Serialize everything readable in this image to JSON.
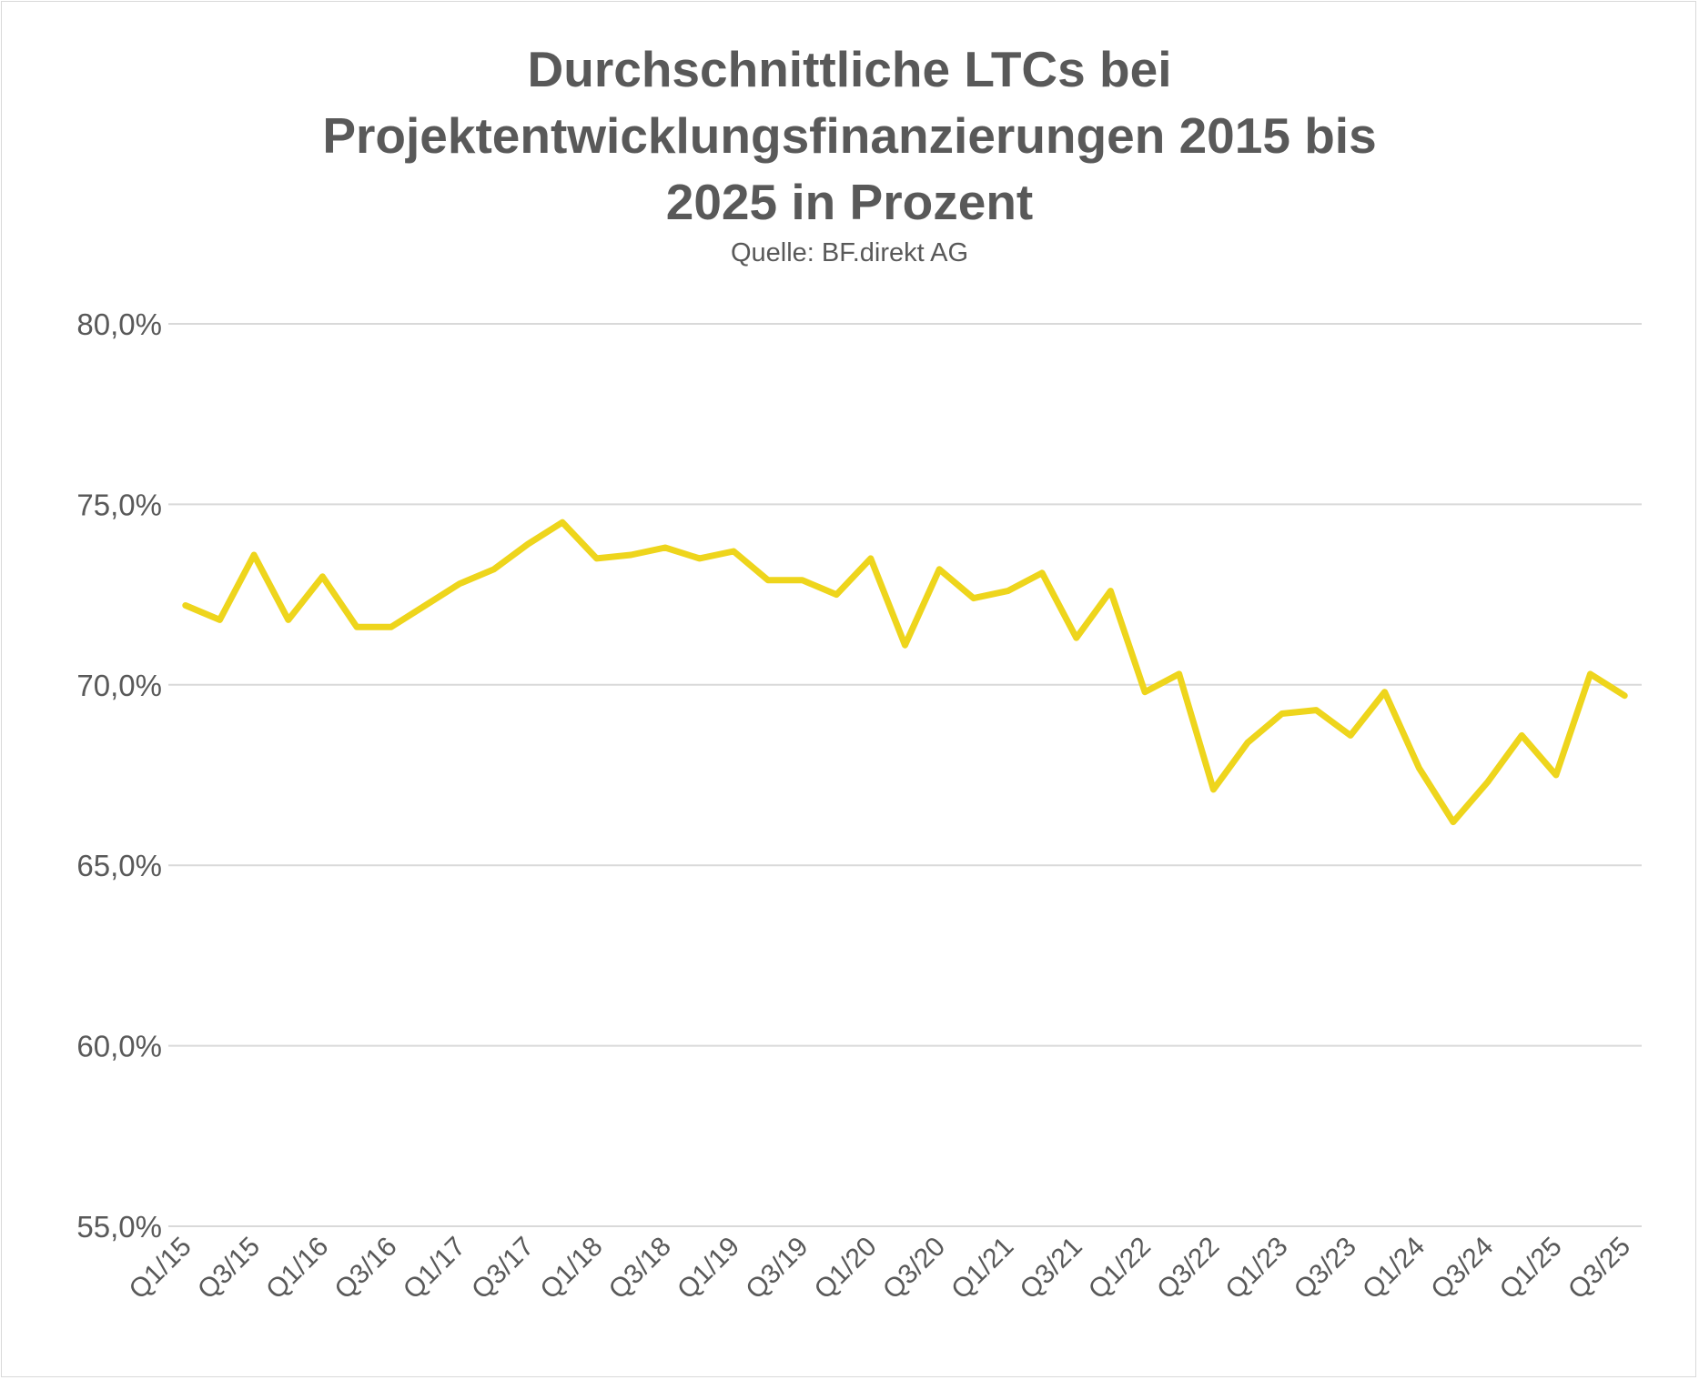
{
  "chart_data": {
    "type": "line",
    "title": "Durchschnittliche LTCs bei Projektentwicklungsfinanzierungen 2015 bis 2025 in Prozent",
    "title_lines": [
      "Durchschnittliche LTCs bei",
      "Projektentwicklungsfinanzierungen 2015 bis",
      "2025 in Prozent"
    ],
    "subtitle": "Quelle: BF.direkt AG",
    "xlabel": "",
    "ylabel": "",
    "ylim": [
      55,
      80
    ],
    "yticks": [
      55,
      60,
      65,
      70,
      75,
      80
    ],
    "ytick_labels": [
      "55,0%",
      "60,0%",
      "65,0%",
      "70,0%",
      "75,0%",
      "80,0%"
    ],
    "grid": "horizontal",
    "legend": "none",
    "line_color": "#EED51C",
    "categories": [
      "Q1/15",
      "Q2/15",
      "Q3/15",
      "Q4/15",
      "Q1/16",
      "Q2/16",
      "Q3/16",
      "Q4/16",
      "Q1/17",
      "Q2/17",
      "Q3/17",
      "Q4/17",
      "Q1/18",
      "Q2/18",
      "Q3/18",
      "Q4/18",
      "Q1/19",
      "Q2/19",
      "Q3/19",
      "Q4/19",
      "Q1/20",
      "Q2/20",
      "Q3/20",
      "Q4/20",
      "Q1/21",
      "Q2/21",
      "Q3/21",
      "Q4/21",
      "Q1/22",
      "Q2/22",
      "Q3/22",
      "Q4/22",
      "Q1/23",
      "Q2/23",
      "Q3/23",
      "Q4/23",
      "Q1/24",
      "Q2/24",
      "Q3/24",
      "Q4/24",
      "Q1/25",
      "Q2/25",
      "Q3/25"
    ],
    "x_tick_labels": [
      "Q1/15",
      "Q3/15",
      "Q1/16",
      "Q3/16",
      "Q1/17",
      "Q3/17",
      "Q1/18",
      "Q3/18",
      "Q1/19",
      "Q3/19",
      "Q1/20",
      "Q3/20",
      "Q1/21",
      "Q3/21",
      "Q1/22",
      "Q3/22",
      "Q1/23",
      "Q3/23",
      "Q1/24",
      "Q3/24",
      "Q1/25",
      "Q3/25"
    ],
    "values": [
      72.2,
      71.8,
      73.6,
      71.8,
      73.0,
      71.6,
      71.6,
      72.2,
      72.8,
      73.2,
      73.9,
      74.5,
      73.5,
      73.6,
      73.8,
      73.5,
      73.7,
      72.9,
      72.9,
      72.5,
      73.5,
      71.1,
      73.2,
      72.4,
      72.6,
      73.1,
      71.3,
      72.6,
      69.8,
      70.3,
      67.1,
      68.4,
      69.2,
      69.3,
      68.6,
      69.8,
      67.7,
      66.2,
      67.3,
      68.6,
      67.5,
      70.3,
      69.7
    ]
  }
}
